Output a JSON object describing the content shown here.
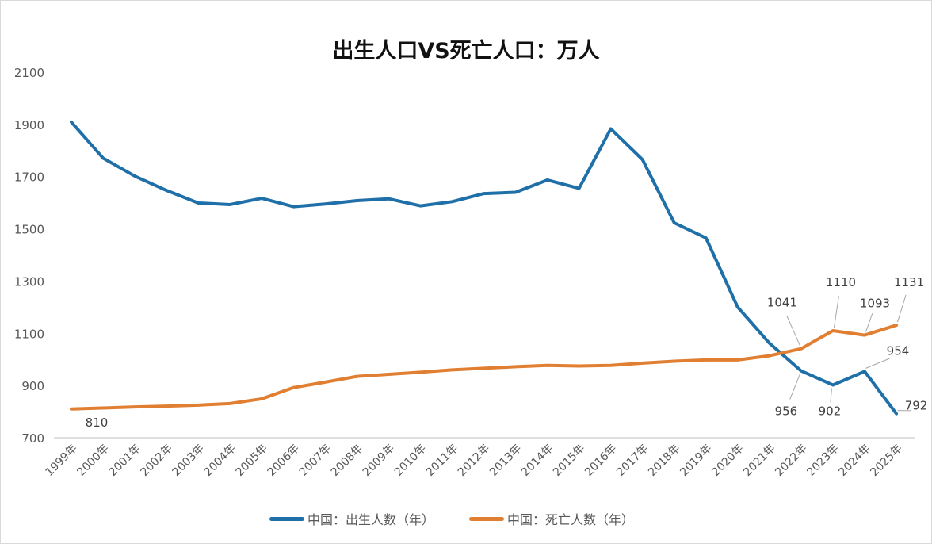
{
  "chart_data": {
    "type": "line",
    "title": "出生人口VS死亡人口：万人",
    "xlabel": "",
    "ylabel": "",
    "ylim": [
      700,
      2100
    ],
    "yticks": [
      700,
      900,
      1100,
      1300,
      1500,
      1700,
      1900,
      2100
    ],
    "grid": false,
    "legend_position": "bottom",
    "categories": [
      "1999年",
      "2000年",
      "2001年",
      "2002年",
      "2003年",
      "2004年",
      "2005年",
      "2006年",
      "2007年",
      "2008年",
      "2009年",
      "2010年",
      "2011年",
      "2012年",
      "2013年",
      "2014年",
      "2015年",
      "2016年",
      "2017年",
      "2018年",
      "2019年",
      "2020年",
      "2021年",
      "2022年",
      "2023年",
      "2024年",
      "2025年"
    ],
    "series": [
      {
        "name": "中国：出生人数（年）",
        "color": "#1f6fa8",
        "values": [
          1909,
          1771,
          1702,
          1647,
          1599,
          1593,
          1617,
          1585,
          1595,
          1608,
          1615,
          1588,
          1604,
          1635,
          1640,
          1687,
          1655,
          1883,
          1765,
          1523,
          1465,
          1200,
          1062,
          956,
          902,
          954,
          792
        ],
        "data_labels": {
          "23": "956",
          "24": "902",
          "25": "954",
          "26": "792"
        }
      },
      {
        "name": "中国：死亡人数（年）",
        "color": "#e07f32",
        "values": [
          810,
          814,
          818,
          821,
          825,
          831,
          849,
          892,
          913,
          935,
          943,
          951,
          960,
          966,
          972,
          977,
          975,
          977,
          986,
          993,
          998,
          998,
          1014,
          1041,
          1110,
          1093,
          1131
        ],
        "data_labels": {
          "0": "810",
          "23": "1041",
          "24": "1110",
          "25": "1093",
          "26": "1131"
        }
      }
    ]
  }
}
